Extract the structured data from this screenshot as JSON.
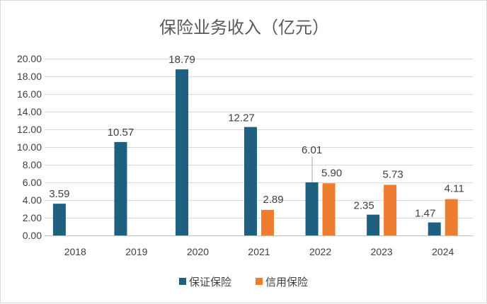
{
  "chart_data": {
    "type": "bar",
    "title": "保险业务收入（亿元）",
    "xlabel": "",
    "ylabel": "",
    "categories": [
      "2018",
      "2019",
      "2020",
      "2021",
      "2022",
      "2023",
      "2024"
    ],
    "series": [
      {
        "name": "保证保险",
        "color": "#1F5F80",
        "values": [
          3.59,
          10.57,
          18.79,
          12.27,
          6.01,
          2.35,
          1.47
        ],
        "labels": [
          "3.59",
          "10.57",
          "18.79",
          "12.27",
          "6.01",
          "2.35",
          "1.47"
        ]
      },
      {
        "name": "信用保险",
        "color": "#ED7D31",
        "values": [
          null,
          null,
          null,
          2.89,
          5.9,
          5.73,
          4.11
        ],
        "labels": [
          null,
          null,
          null,
          "2.89",
          "5.90",
          "5.73",
          "4.11"
        ]
      }
    ],
    "ylim": [
      0,
      20
    ],
    "yticks": [
      "0.00",
      "2.00",
      "4.00",
      "6.00",
      "8.00",
      "10.00",
      "12.00",
      "14.00",
      "16.00",
      "18.00",
      "20.00"
    ],
    "grid": true,
    "legend": "bottom"
  }
}
